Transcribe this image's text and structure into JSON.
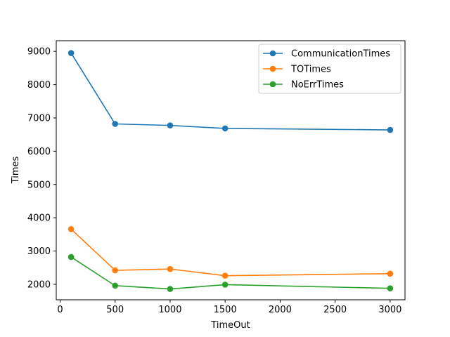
{
  "chart_data": {
    "type": "line",
    "title": "",
    "xlabel": "TimeOut",
    "ylabel": "Times",
    "x": [
      100,
      500,
      1000,
      1500,
      3000
    ],
    "xlim": [
      -35,
      3135
    ],
    "ylim": [
      1535,
      9320
    ],
    "xticks": [
      0,
      500,
      1000,
      1500,
      2000,
      2500,
      3000
    ],
    "yticks": [
      2000,
      3000,
      4000,
      5000,
      6000,
      7000,
      8000,
      9000
    ],
    "grid": false,
    "legend_position": "top-right",
    "series": [
      {
        "name": "CommunicationTimes",
        "color": "#1f77b4",
        "values": [
          8950,
          6820,
          6775,
          6685,
          6640
        ]
      },
      {
        "name": "TOTimes",
        "color": "#ff7f0e",
        "values": [
          3660,
          2420,
          2460,
          2260,
          2320
        ]
      },
      {
        "name": "NoErrTimes",
        "color": "#2ca02c",
        "values": [
          2820,
          1960,
          1860,
          1990,
          1880
        ]
      }
    ]
  }
}
